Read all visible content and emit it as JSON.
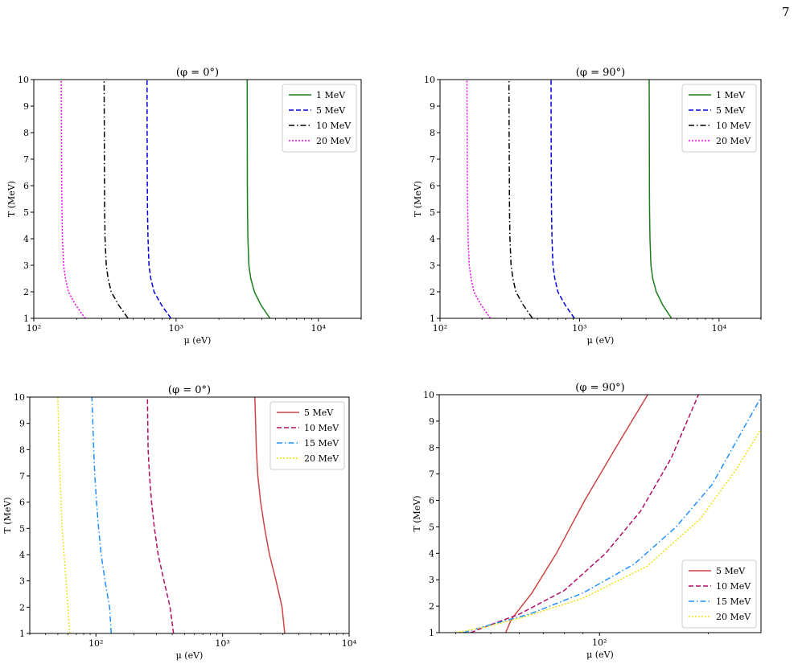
{
  "page_number": "7",
  "chart_data": [
    {
      "type": "line",
      "title": "(φ = 0°)",
      "xlabel": "μ (eV)",
      "ylabel": "T (MeV)",
      "xscale": "log",
      "xlim": [
        100,
        20000
      ],
      "ylim": [
        1,
        10
      ],
      "x_tick_labels": [
        "10²",
        "10³",
        "10⁴"
      ],
      "y_ticks": [
        1,
        2,
        3,
        4,
        5,
        6,
        7,
        8,
        9,
        10
      ],
      "legend_position": "top-right",
      "series": [
        {
          "name": "1 MeV",
          "color": "#1a7f1a",
          "dash": "solid",
          "x": [
            4570,
            3950,
            3550,
            3350,
            3250,
            3200,
            3180,
            3170,
            3165,
            3160
          ],
          "y": [
            1,
            1.5,
            2,
            2.5,
            3,
            4,
            5,
            6,
            8,
            10
          ]
        },
        {
          "name": "5 MeV",
          "color": "#0000dd",
          "dash": "dashed",
          "x": [
            920,
            790,
            700,
            665,
            645,
            635,
            630,
            628,
            626,
            625
          ],
          "y": [
            1,
            1.5,
            2,
            2.5,
            3,
            4,
            5,
            6,
            8,
            10
          ]
        },
        {
          "name": "10 MeV",
          "color": "#000000",
          "dash": "dashdot",
          "x": [
            460,
            395,
            350,
            333,
            323,
            317,
            315,
            314,
            313,
            312
          ],
          "y": [
            1,
            1.5,
            2,
            2.5,
            3,
            4,
            5,
            6,
            8,
            10
          ]
        },
        {
          "name": "20 MeV",
          "color": "#ee00ee",
          "dash": "dotted",
          "x": [
            230,
            197,
            175,
            167,
            162,
            159,
            158,
            157,
            156.5,
            156
          ],
          "y": [
            1,
            1.5,
            2,
            2.5,
            3,
            4,
            5,
            6,
            8,
            10
          ]
        }
      ]
    },
    {
      "type": "line",
      "title": "(φ = 90°)",
      "xlabel": "μ (eV)",
      "ylabel": "T (MeV)",
      "xscale": "log",
      "xlim": [
        100,
        20000
      ],
      "ylim": [
        1,
        10
      ],
      "x_tick_labels": [
        "10²",
        "10³",
        "10⁴"
      ],
      "y_ticks": [
        1,
        2,
        3,
        4,
        5,
        6,
        7,
        8,
        9,
        10
      ],
      "legend_position": "top-right",
      "series": [
        {
          "name": "1 MeV",
          "color": "#1a7f1a",
          "dash": "solid",
          "x": [
            4570,
            3950,
            3550,
            3350,
            3250,
            3200,
            3180,
            3170,
            3165,
            3160
          ],
          "y": [
            1,
            1.5,
            2,
            2.5,
            3,
            4,
            5,
            6,
            8,
            10
          ]
        },
        {
          "name": "5 MeV",
          "color": "#0000dd",
          "dash": "dashed",
          "x": [
            920,
            790,
            700,
            665,
            645,
            635,
            630,
            628,
            626,
            625
          ],
          "y": [
            1,
            1.5,
            2,
            2.5,
            3,
            4,
            5,
            6,
            8,
            10
          ]
        },
        {
          "name": "10 MeV",
          "color": "#000000",
          "dash": "dashdot",
          "x": [
            460,
            395,
            350,
            333,
            323,
            317,
            315,
            314,
            313,
            312
          ],
          "y": [
            1,
            1.5,
            2,
            2.5,
            3,
            4,
            5,
            6,
            8,
            10
          ]
        },
        {
          "name": "20 MeV",
          "color": "#ee00ee",
          "dash": "dotted",
          "x": [
            230,
            197,
            175,
            167,
            162,
            159,
            158,
            157,
            156.5,
            156
          ],
          "y": [
            1,
            1.5,
            2,
            2.5,
            3,
            4,
            5,
            6,
            8,
            10
          ]
        }
      ]
    },
    {
      "type": "line",
      "title": "(φ = 0°)",
      "xlabel": "μ (eV)",
      "ylabel": "T (MeV)",
      "xscale": "log",
      "xlim": [
        30,
        10000
      ],
      "ylim": [
        1,
        10
      ],
      "x_tick_labels": [
        "10²",
        "10³",
        "10⁴"
      ],
      "y_ticks": [
        1,
        2,
        3,
        4,
        5,
        6,
        7,
        8,
        9,
        10
      ],
      "legend_position": "top-right",
      "series": [
        {
          "name": "5 MeV",
          "color": "#cc4444",
          "dash": "solid",
          "x": [
            3100,
            2950,
            2650,
            2350,
            2150,
            2000,
            1900,
            1850,
            1800
          ],
          "y": [
            1,
            2,
            3,
            4,
            5,
            6,
            7,
            8,
            10
          ]
        },
        {
          "name": "10 MeV",
          "color": "#b0106a",
          "dash": "dashed",
          "x": [
            410,
            385,
            345,
            310,
            290,
            275,
            265,
            258,
            255
          ],
          "y": [
            1,
            2,
            3,
            4,
            5,
            6,
            7,
            8,
            10
          ]
        },
        {
          "name": "15 MeV",
          "color": "#1e90ff",
          "dash": "dashdot",
          "x": [
            132,
            128,
            118,
            110,
            105,
            101,
            98,
            96,
            93
          ],
          "y": [
            1,
            2,
            3,
            4,
            5,
            6,
            7,
            8,
            10
          ]
        },
        {
          "name": "20 MeV",
          "color": "#f0e010",
          "dash": "dotted",
          "x": [
            62,
            60,
            58,
            56,
            54,
            53,
            52,
            51,
            50
          ],
          "y": [
            1,
            2,
            3,
            4,
            5,
            6,
            7,
            8,
            10
          ]
        }
      ]
    },
    {
      "type": "line",
      "title": "(φ = 90°)",
      "xlabel": "μ (eV)",
      "ylabel": "T (MeV)",
      "xscale": "log",
      "xlim": [
        36,
        280
      ],
      "ylim": [
        1,
        10
      ],
      "x_tick_labels": [
        "10²"
      ],
      "y_ticks": [
        1,
        2,
        3,
        4,
        5,
        6,
        7,
        8,
        9,
        10
      ],
      "legend_position": "bottom-right",
      "series": [
        {
          "name": "5 MeV",
          "color": "#cc4444",
          "dash": "solid",
          "x": [
            55,
            57,
            65,
            76,
            91,
            111,
            136
          ],
          "y": [
            1,
            1.5,
            2.5,
            4,
            6,
            8,
            10
          ]
        },
        {
          "name": "10 MeV",
          "color": "#b0106a",
          "dash": "dashed",
          "x": [
            44,
            50,
            60,
            80,
            104,
            130,
            158,
            188
          ],
          "y": [
            1,
            1.3,
            1.7,
            2.6,
            4,
            5.6,
            7.6,
            10
          ]
        },
        {
          "name": "15 MeV",
          "color": "#1e90ff",
          "dash": "dashdot",
          "x": [
            42,
            50,
            64,
            90,
            125,
            163,
            205,
            280
          ],
          "y": [
            1,
            1.3,
            1.7,
            2.5,
            3.6,
            5,
            6.6,
            9.9
          ]
        },
        {
          "name": "20 MeV",
          "color": "#f0e010",
          "dash": "dotted",
          "x": [
            40,
            48,
            62,
            90,
            135,
            190,
            240,
            280
          ],
          "y": [
            1,
            1.2,
            1.6,
            2.3,
            3.5,
            5.3,
            7.2,
            8.7
          ]
        }
      ]
    }
  ]
}
